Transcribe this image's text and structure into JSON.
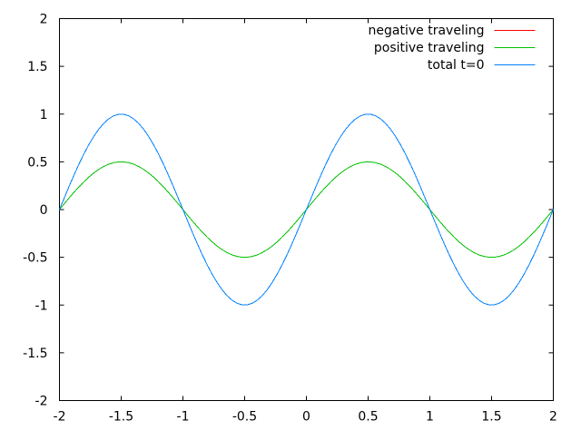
{
  "background_color": "#ffffff",
  "chart_data": {
    "type": "line",
    "title": "",
    "xlabel": "",
    "ylabel": "",
    "xlim": [
      -2,
      2
    ],
    "ylim": [
      -2,
      2
    ],
    "x_tick_labels": [
      "-2",
      "-1.5",
      "-1",
      "-0.5",
      "0",
      "0.5",
      "1",
      "1.5",
      "2"
    ],
    "y_tick_labels": [
      "-2",
      "-1.5",
      "-1",
      "-0.5",
      "0",
      "0.5",
      "1",
      "1.5",
      "2"
    ],
    "x_ticks": [
      -2,
      -1.5,
      -1,
      -0.5,
      0,
      0.5,
      1,
      1.5,
      2
    ],
    "y_ticks": [
      -2,
      -1.5,
      -1,
      -0.5,
      0,
      0.5,
      1,
      1.5,
      2
    ],
    "grid": false,
    "legend_position": "top-right-inside",
    "border_color": "#000000",
    "text_color": "#000000",
    "x": [
      -2.0,
      -1.96,
      -1.92,
      -1.88,
      -1.84,
      -1.8,
      -1.76,
      -1.72,
      -1.68,
      -1.64,
      -1.6,
      -1.56,
      -1.52,
      -1.48,
      -1.44,
      -1.4,
      -1.36,
      -1.32,
      -1.28,
      -1.24,
      -1.2,
      -1.16,
      -1.12,
      -1.08,
      -1.04,
      -1.0,
      -0.96,
      -0.92,
      -0.88,
      -0.84,
      -0.8,
      -0.76,
      -0.72,
      -0.68,
      -0.64,
      -0.6,
      -0.56,
      -0.52,
      -0.48,
      -0.44,
      -0.4,
      -0.36,
      -0.32,
      -0.28,
      -0.24,
      -0.2,
      -0.16,
      -0.12,
      -0.08,
      -0.04,
      0.0,
      0.04,
      0.08,
      0.12,
      0.16,
      0.2,
      0.24,
      0.28,
      0.32,
      0.36,
      0.4,
      0.44,
      0.48,
      0.52,
      0.56,
      0.6,
      0.64,
      0.68,
      0.72,
      0.76,
      0.8,
      0.84,
      0.88,
      0.92,
      0.96,
      1.0,
      1.04,
      1.08,
      1.12,
      1.16,
      1.2,
      1.24,
      1.28,
      1.32,
      1.36,
      1.4,
      1.44,
      1.48,
      1.52,
      1.56,
      1.6,
      1.64,
      1.68,
      1.72,
      1.76,
      1.8,
      1.84,
      1.88,
      1.92,
      1.96,
      2.0
    ],
    "series": [
      {
        "name": "negative traveling",
        "color": "#ff0000",
        "values": [
          0.0,
          0.0627,
          0.1243,
          0.1841,
          0.2409,
          0.2939,
          0.3423,
          0.3853,
          0.4222,
          0.4524,
          0.4755,
          0.4911,
          0.499,
          0.499,
          0.4911,
          0.4755,
          0.4524,
          0.4222,
          0.3853,
          0.3423,
          0.2939,
          0.2409,
          0.1841,
          0.1243,
          0.0627,
          -0.0,
          -0.0627,
          -0.1243,
          -0.1841,
          -0.2409,
          -0.2939,
          -0.3423,
          -0.3853,
          -0.4222,
          -0.4524,
          -0.4755,
          -0.4911,
          -0.499,
          -0.499,
          -0.4911,
          -0.4755,
          -0.4524,
          -0.4222,
          -0.3853,
          -0.3423,
          -0.2939,
          -0.2409,
          -0.1841,
          -0.1243,
          -0.0627,
          0.0,
          0.0627,
          0.1243,
          0.1841,
          0.2409,
          0.2939,
          0.3423,
          0.3853,
          0.4222,
          0.4524,
          0.4755,
          0.4911,
          0.499,
          0.499,
          0.4911,
          0.4755,
          0.4524,
          0.4222,
          0.3853,
          0.3423,
          0.2939,
          0.2409,
          0.1841,
          0.1243,
          0.0627,
          0.0,
          -0.0627,
          -0.1243,
          -0.1841,
          -0.2409,
          -0.2939,
          -0.3423,
          -0.3853,
          -0.4222,
          -0.4524,
          -0.4755,
          -0.4911,
          -0.499,
          -0.499,
          -0.4911,
          -0.4755,
          -0.4524,
          -0.4222,
          -0.3853,
          -0.3423,
          -0.2939,
          -0.2409,
          -0.1841,
          -0.1243,
          -0.0627,
          -0.0
        ]
      },
      {
        "name": "positive traveling",
        "color": "#00c000",
        "values": [
          0.0,
          0.0627,
          0.1243,
          0.1841,
          0.2409,
          0.2939,
          0.3423,
          0.3853,
          0.4222,
          0.4524,
          0.4755,
          0.4911,
          0.499,
          0.499,
          0.4911,
          0.4755,
          0.4524,
          0.4222,
          0.3853,
          0.3423,
          0.2939,
          0.2409,
          0.1841,
          0.1243,
          0.0627,
          -0.0,
          -0.0627,
          -0.1243,
          -0.1841,
          -0.2409,
          -0.2939,
          -0.3423,
          -0.3853,
          -0.4222,
          -0.4524,
          -0.4755,
          -0.4911,
          -0.499,
          -0.499,
          -0.4911,
          -0.4755,
          -0.4524,
          -0.4222,
          -0.3853,
          -0.3423,
          -0.2939,
          -0.2409,
          -0.1841,
          -0.1243,
          -0.0627,
          0.0,
          0.0627,
          0.1243,
          0.1841,
          0.2409,
          0.2939,
          0.3423,
          0.3853,
          0.4222,
          0.4524,
          0.4755,
          0.4911,
          0.499,
          0.499,
          0.4911,
          0.4755,
          0.4524,
          0.4222,
          0.3853,
          0.3423,
          0.2939,
          0.2409,
          0.1841,
          0.1243,
          0.0627,
          0.0,
          -0.0627,
          -0.1243,
          -0.1841,
          -0.2409,
          -0.2939,
          -0.3423,
          -0.3853,
          -0.4222,
          -0.4524,
          -0.4755,
          -0.4911,
          -0.499,
          -0.499,
          -0.4911,
          -0.4755,
          -0.4524,
          -0.4222,
          -0.3853,
          -0.3423,
          -0.2939,
          -0.2409,
          -0.1841,
          -0.1243,
          -0.0627,
          -0.0
        ]
      },
      {
        "name": "total t=0",
        "color": "#0080ff",
        "values": [
          0.0,
          0.1253,
          0.2487,
          0.3681,
          0.4818,
          0.5878,
          0.6845,
          0.7705,
          0.8443,
          0.9048,
          0.9511,
          0.9823,
          0.998,
          0.998,
          0.9823,
          0.9511,
          0.9048,
          0.8443,
          0.7705,
          0.6845,
          0.5878,
          0.4818,
          0.3681,
          0.2487,
          0.1253,
          -0.0,
          -0.1253,
          -0.2487,
          -0.3681,
          -0.4818,
          -0.5878,
          -0.6845,
          -0.7705,
          -0.8443,
          -0.9048,
          -0.9511,
          -0.9823,
          -0.998,
          -0.998,
          -0.9823,
          -0.9511,
          -0.9048,
          -0.8443,
          -0.7705,
          -0.6845,
          -0.5878,
          -0.4818,
          -0.3681,
          -0.2487,
          -0.1253,
          0.0,
          0.1253,
          0.2487,
          0.3681,
          0.4818,
          0.5878,
          0.6845,
          0.7705,
          0.8443,
          0.9048,
          0.9511,
          0.9823,
          0.998,
          0.998,
          0.9823,
          0.9511,
          0.9048,
          0.8443,
          0.7705,
          0.6845,
          0.5878,
          0.4818,
          0.3681,
          0.2487,
          0.1253,
          0.0,
          -0.1253,
          -0.2487,
          -0.3681,
          -0.4818,
          -0.5878,
          -0.6845,
          -0.7705,
          -0.8443,
          -0.9048,
          -0.9511,
          -0.9823,
          -0.998,
          -0.998,
          -0.9823,
          -0.9511,
          -0.9048,
          -0.8443,
          -0.7705,
          -0.6845,
          -0.5878,
          -0.4818,
          -0.3681,
          -0.2487,
          -0.1253,
          -0.0
        ]
      }
    ]
  }
}
